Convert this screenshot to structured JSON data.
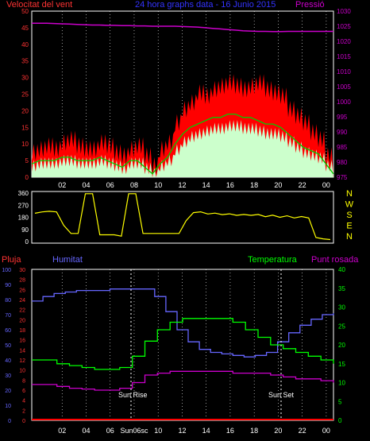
{
  "header": {
    "wind_label": "Velocitat del vent",
    "title": "24 hora graphs data - 16 Junio 2015",
    "pressure_label": "Pressió"
  },
  "labels": {
    "rain": "Pluja",
    "humidity": "Humitat",
    "temperature": "Temperatura",
    "dewpoint": "Punt rosada",
    "sunrise": "Sun Rise",
    "sunset": "Sun Set",
    "sunrise_tick": "Sun06sc"
  },
  "colors": {
    "wind": "#ff0000",
    "gust_avg": "#00cc00",
    "wind_light": "#ccffcc",
    "pressure": "#cc00cc",
    "direction": "#ffff00",
    "humidity": "#6666ff",
    "temperature": "#00ff00",
    "dewpoint": "#cc00cc",
    "rain": "#ff0000",
    "axis_rain": "#ff3333",
    "axis_pressure": "#cc00cc",
    "axis_humidity": "#6666ff",
    "axis_temp": "#00ff00"
  },
  "chart_data": [
    {
      "type": "line",
      "name": "wind_pressure",
      "x_ticks": [
        "02",
        "04",
        "06",
        "08",
        "10",
        "12",
        "14",
        "16",
        "18",
        "20",
        "22",
        "00"
      ],
      "wind_axis": [
        0,
        5,
        10,
        15,
        20,
        25,
        30,
        35,
        40,
        45,
        50
      ],
      "pressure_axis": [
        975,
        980,
        985,
        990,
        995,
        1000,
        1005,
        1010,
        1015,
        1020,
        1025,
        1030
      ],
      "wind_gust": [
        7,
        8,
        9,
        8,
        10,
        11,
        9,
        8,
        8,
        10,
        9,
        7,
        6,
        8,
        9,
        6,
        3,
        8,
        10,
        16,
        20,
        22,
        25,
        24,
        26,
        27,
        28,
        27,
        26,
        27,
        28,
        26,
        25,
        24,
        20,
        18,
        16,
        13,
        11,
        6,
        2
      ],
      "wind_avg": [
        4,
        5,
        5,
        5,
        6,
        6,
        5,
        5,
        5,
        6,
        5,
        4,
        3,
        5,
        5,
        3,
        1,
        4,
        6,
        10,
        13,
        15,
        16,
        17,
        18,
        18,
        19,
        19,
        18,
        18,
        17,
        16,
        16,
        15,
        13,
        11,
        9,
        8,
        7,
        4,
        1
      ],
      "pressure": [
        1026,
        1026,
        1026,
        1025.9,
        1025.8,
        1025.7,
        1025.6,
        1025.5,
        1025.4,
        1025.4,
        1025.3,
        1025.3,
        1025.2,
        1025.2,
        1025.1,
        1025.1,
        1025.0,
        1025.0,
        1025.0,
        1025.0,
        1024.9,
        1024.8,
        1024.7,
        1024.5,
        1024.3,
        1024.1,
        1023.9,
        1023.7,
        1023.5,
        1023.4,
        1023.3,
        1023.3,
        1023.2,
        1023.2,
        1023.3,
        1023.3,
        1023.3,
        1023.3,
        1023.3,
        1023.3,
        1023.3
      ]
    },
    {
      "type": "line",
      "name": "wind_direction",
      "y_ticks": [
        0,
        90,
        180,
        270,
        360
      ],
      "compass": [
        "N",
        "W",
        "S",
        "E",
        "N"
      ],
      "direction": [
        210,
        220,
        225,
        220,
        120,
        60,
        60,
        355,
        355,
        50,
        50,
        50,
        40,
        355,
        355,
        60,
        60,
        60,
        60,
        60,
        60,
        150,
        220,
        215,
        210,
        205,
        205,
        200,
        200,
        195,
        200,
        195,
        190,
        190,
        185,
        185,
        180,
        180,
        175,
        30,
        20,
        15
      ]
    },
    {
      "type": "line",
      "name": "temp_hum_dew_rain",
      "rain_axis": [
        0,
        2,
        4,
        6,
        8,
        10,
        12,
        14,
        16,
        18,
        20,
        22,
        24,
        26,
        28,
        30
      ],
      "humidity_axis": [
        0,
        10,
        20,
        30,
        40,
        50,
        60,
        70,
        80,
        90,
        100
      ],
      "temp_axis": [
        0,
        5,
        10,
        15,
        20,
        25,
        30,
        35,
        40
      ],
      "humidity": [
        79,
        82,
        84,
        85,
        86,
        86,
        86,
        87,
        87,
        87,
        87,
        82,
        72,
        60,
        52,
        47,
        45,
        44,
        43,
        42,
        43,
        45,
        52,
        58,
        63,
        67,
        70,
        71
      ],
      "temperature": [
        16,
        16,
        15,
        14.5,
        14,
        13.5,
        13.5,
        14,
        17,
        21,
        24,
        26,
        27,
        27,
        27,
        27,
        26,
        24,
        22,
        20,
        19,
        18,
        17,
        16,
        15
      ],
      "dewpoint": [
        9.5,
        9.5,
        9,
        8.5,
        8.3,
        8,
        8,
        8.5,
        10,
        12,
        12.5,
        13,
        13,
        13,
        13,
        13,
        12.5,
        12.5,
        12.5,
        12,
        11.5,
        11,
        11,
        10.5,
        10
      ],
      "rain": [
        0,
        0,
        0,
        0,
        0,
        0,
        0,
        0,
        0,
        0,
        0,
        0,
        0,
        0,
        0,
        0,
        0,
        0,
        0,
        0,
        0,
        0,
        0,
        0,
        0
      ]
    }
  ]
}
